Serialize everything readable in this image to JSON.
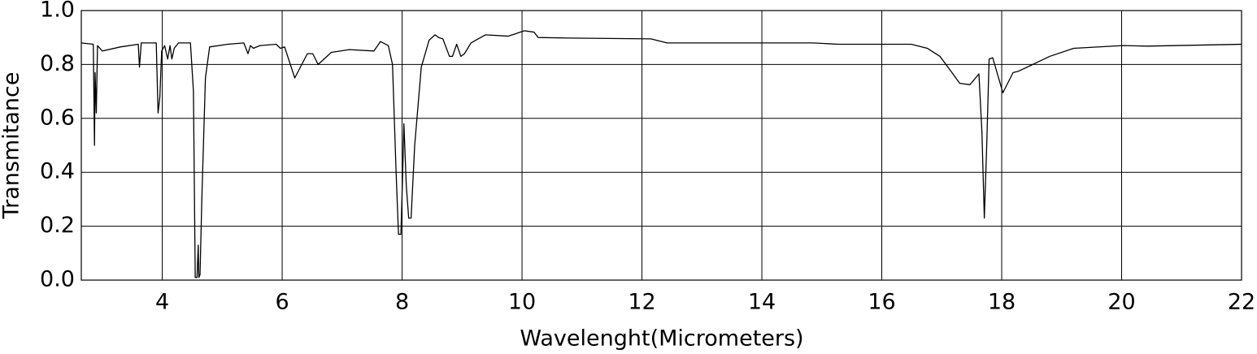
{
  "chart_data": {
    "type": "line",
    "x_label": "Wavelenght(Micrometers)",
    "y_label": "Transmitance",
    "xlim": [
      2.65,
      22
    ],
    "ylim": [
      0,
      1
    ],
    "xticks": [
      4,
      6,
      8,
      10,
      12,
      14,
      16,
      18,
      20,
      22
    ],
    "yticks": [
      {
        "value": 0,
        "label": "0.0"
      },
      0.2,
      0.4,
      0.6,
      0.8,
      {
        "value": 1,
        "label": "1.0"
      }
    ],
    "grid": true,
    "series": [
      {
        "color": "#000000",
        "x": [
          2.65,
          2.85,
          2.87,
          2.88,
          2.9,
          2.92,
          3.0,
          3.3,
          3.6,
          3.62,
          3.65,
          3.9,
          3.93,
          3.96,
          3.99,
          4.04,
          4.09,
          4.13,
          4.16,
          4.2,
          4.27,
          4.47,
          4.52,
          4.55,
          4.58,
          4.6,
          4.61,
          4.63,
          4.66,
          4.72,
          4.79,
          5.09,
          5.36,
          5.43,
          5.47,
          5.52,
          5.63,
          5.9,
          5.97,
          6.04,
          6.21,
          6.42,
          6.51,
          6.6,
          6.82,
          7.12,
          7.53,
          7.64,
          7.77,
          7.84,
          7.9,
          7.94,
          7.98,
          8.01,
          8.03,
          8.07,
          8.11,
          8.15,
          8.21,
          8.32,
          8.45,
          8.55,
          8.61,
          8.68,
          8.79,
          8.84,
          8.91,
          8.98,
          9.04,
          9.15,
          9.39,
          9.77,
          10.04,
          10.2,
          10.27,
          10.79,
          12.15,
          12.42,
          14.86,
          15.27,
          16.49,
          16.76,
          16.97,
          17.17,
          17.3,
          17.47,
          17.62,
          17.67,
          17.71,
          17.75,
          17.79,
          17.85,
          18.02,
          18.19,
          18.28,
          18.8,
          19.2,
          20.02,
          20.43,
          22.0
        ],
        "values": [
          0.88,
          0.875,
          0.5,
          0.77,
          0.62,
          0.87,
          0.85,
          0.865,
          0.875,
          0.79,
          0.88,
          0.88,
          0.62,
          0.68,
          0.85,
          0.87,
          0.82,
          0.87,
          0.82,
          0.86,
          0.88,
          0.88,
          0.7,
          0.01,
          0.01,
          0.13,
          0.01,
          0.02,
          0.3,
          0.75,
          0.865,
          0.875,
          0.88,
          0.84,
          0.87,
          0.86,
          0.87,
          0.875,
          0.86,
          0.865,
          0.75,
          0.84,
          0.84,
          0.8,
          0.845,
          0.855,
          0.85,
          0.885,
          0.87,
          0.8,
          0.4,
          0.17,
          0.17,
          0.4,
          0.58,
          0.35,
          0.23,
          0.23,
          0.5,
          0.79,
          0.89,
          0.91,
          0.9,
          0.895,
          0.83,
          0.83,
          0.875,
          0.83,
          0.84,
          0.88,
          0.91,
          0.905,
          0.925,
          0.92,
          0.9,
          0.898,
          0.895,
          0.88,
          0.88,
          0.875,
          0.875,
          0.86,
          0.83,
          0.77,
          0.73,
          0.725,
          0.765,
          0.55,
          0.23,
          0.5,
          0.82,
          0.825,
          0.695,
          0.77,
          0.775,
          0.83,
          0.86,
          0.87,
          0.868,
          0.875
        ]
      }
    ]
  }
}
